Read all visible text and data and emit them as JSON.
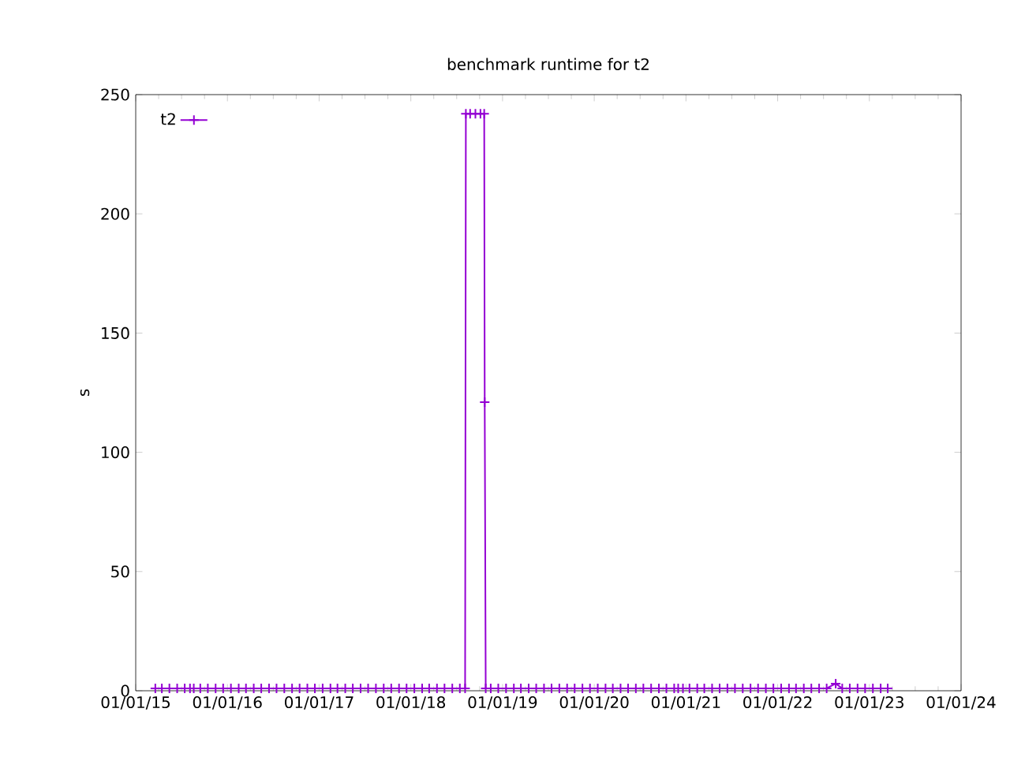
{
  "chart_data": {
    "type": "line",
    "title": "benchmark runtime for t2",
    "ylabel": "s",
    "xlim": [
      "2015-01-01",
      "2024-01-01"
    ],
    "xticks": [
      {
        "value": "2015-01-01",
        "label": "01/01/15"
      },
      {
        "value": "2016-01-01",
        "label": "01/01/16"
      },
      {
        "value": "2017-01-01",
        "label": "01/01/17"
      },
      {
        "value": "2018-01-01",
        "label": "01/01/18"
      },
      {
        "value": "2019-01-01",
        "label": "01/01/19"
      },
      {
        "value": "2020-01-01",
        "label": "01/01/20"
      },
      {
        "value": "2021-01-01",
        "label": "01/01/21"
      },
      {
        "value": "2022-01-01",
        "label": "01/01/22"
      },
      {
        "value": "2023-01-01",
        "label": "01/01/23"
      },
      {
        "value": "2024-01-01",
        "label": "01/01/24"
      }
    ],
    "ylim": [
      0,
      250
    ],
    "yticks": [
      0,
      50,
      100,
      150,
      200,
      250
    ],
    "legend": "top left",
    "marker": "cross",
    "line_style": "solid",
    "series": [
      {
        "name": "t2",
        "color": "#9400d3",
        "x": [
          "2015-03-20",
          "2015-04-15",
          "2015-05-15",
          "2015-06-15",
          "2015-07-15",
          "2015-08-05",
          "2015-08-12",
          "2015-08-20",
          "2015-09-15",
          "2015-10-15",
          "2015-11-15",
          "2015-12-15",
          "2016-01-15",
          "2016-02-15",
          "2016-03-15",
          "2016-04-15",
          "2016-05-15",
          "2016-06-15",
          "2016-07-15",
          "2016-08-15",
          "2016-09-15",
          "2016-10-15",
          "2016-11-15",
          "2016-12-15",
          "2017-01-15",
          "2017-02-15",
          "2017-03-15",
          "2017-04-15",
          "2017-05-15",
          "2017-06-15",
          "2017-07-15",
          "2017-08-15",
          "2017-09-15",
          "2017-10-15",
          "2017-11-15",
          "2017-12-15",
          "2018-01-15",
          "2018-02-15",
          "2018-03-15",
          "2018-04-15",
          "2018-05-15",
          "2018-06-15",
          "2018-07-15",
          "2018-08-05",
          "2018-08-08",
          "2018-08-25",
          "2018-09-15",
          "2018-10-05",
          "2018-10-20",
          "2018-10-22",
          "2018-10-26",
          "2018-11-15",
          "2018-12-15",
          "2019-01-15",
          "2019-02-15",
          "2019-03-15",
          "2019-04-15",
          "2019-05-15",
          "2019-06-15",
          "2019-07-15",
          "2019-08-15",
          "2019-09-15",
          "2019-10-15",
          "2019-11-15",
          "2019-12-15",
          "2020-01-15",
          "2020-02-15",
          "2020-03-15",
          "2020-04-15",
          "2020-05-15",
          "2020-06-15",
          "2020-07-15",
          "2020-08-15",
          "2020-09-15",
          "2020-10-15",
          "2020-11-15",
          "2020-11-25",
          "2020-12-01",
          "2020-12-20",
          "2021-01-15",
          "2021-02-15",
          "2021-03-15",
          "2021-04-15",
          "2021-05-15",
          "2021-06-15",
          "2021-07-15",
          "2021-08-15",
          "2021-09-15",
          "2021-10-15",
          "2021-11-15",
          "2021-12-15",
          "2021-12-31",
          "2022-01-15",
          "2022-02-15",
          "2022-03-15",
          "2022-04-15",
          "2022-05-15",
          "2022-06-15",
          "2022-07-15",
          "2022-08-20",
          "2022-09-15",
          "2022-10-15",
          "2022-11-15",
          "2022-12-01",
          "2022-12-15",
          "2023-01-15",
          "2023-02-15",
          "2023-03-15"
        ],
        "values": [
          1,
          1,
          1,
          1,
          1,
          1,
          null,
          1,
          1,
          1,
          1,
          1,
          1,
          1,
          1,
          1,
          1,
          1,
          1,
          1,
          1,
          1,
          1,
          1,
          1,
          1,
          1,
          1,
          1,
          1,
          1,
          1,
          1,
          1,
          1,
          1,
          1,
          1,
          1,
          1,
          1,
          1,
          1,
          1,
          242,
          242,
          242,
          242,
          242,
          121,
          1,
          1,
          1,
          1,
          1,
          1,
          1,
          1,
          1,
          1,
          1,
          1,
          1,
          1,
          1,
          1,
          1,
          1,
          1,
          1,
          1,
          1,
          1,
          1,
          1,
          1,
          null,
          1,
          1,
          1,
          1,
          1,
          1,
          1,
          1,
          1,
          1,
          1,
          1,
          1,
          1,
          null,
          1,
          1,
          1,
          1,
          1,
          1,
          1,
          3,
          1,
          1,
          1,
          null,
          1,
          1,
          1,
          1
        ]
      }
    ]
  }
}
